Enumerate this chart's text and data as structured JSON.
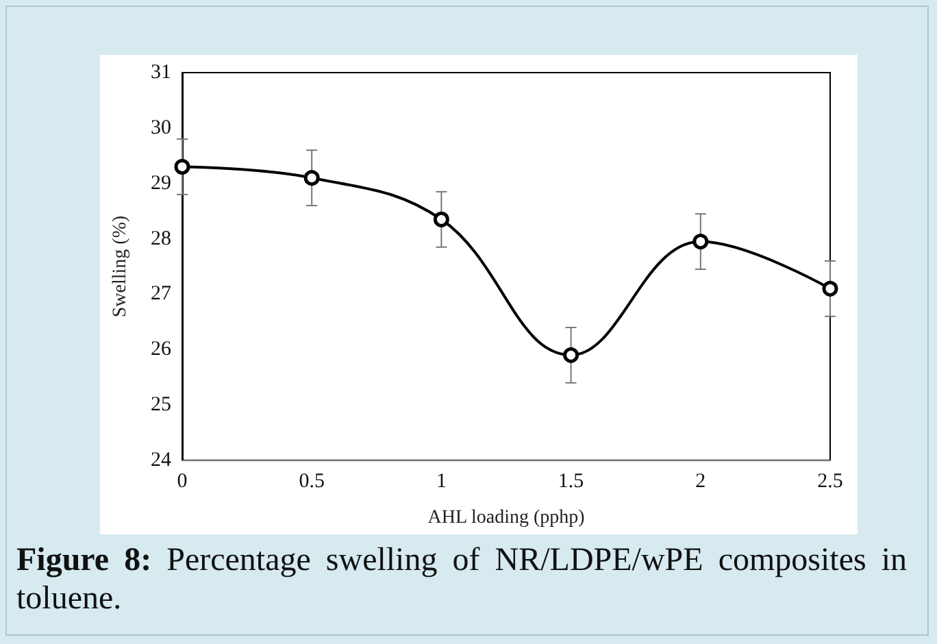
{
  "chart_data": {
    "type": "line",
    "xlabel": "AHL loading (pphp)",
    "ylabel": "Swelling (%)",
    "annotations": [
      "Figure 8:",
      "Percentage swelling of NR/LDPE/wPE composites in toluene."
    ],
    "x": [
      0,
      0.5,
      1,
      1.5,
      2,
      2.5
    ],
    "series": [
      {
        "color": "#000000",
        "values": [
          29.3,
          29.1,
          28.35,
          25.9,
          27.95,
          27.1
        ],
        "errors": [
          0.5,
          0.5,
          0.5,
          0.5,
          0.5,
          0.5
        ]
      }
    ],
    "xlim": [
      0,
      2.5
    ],
    "xticks": [
      0,
      0.5,
      1,
      1.5,
      2,
      2.5
    ],
    "ylim": [
      24,
      31
    ],
    "yticks": [
      24,
      25,
      26,
      27,
      28,
      29,
      30,
      31
    ],
    "grid": false,
    "marker": "circle",
    "line_style": "solid"
  }
}
